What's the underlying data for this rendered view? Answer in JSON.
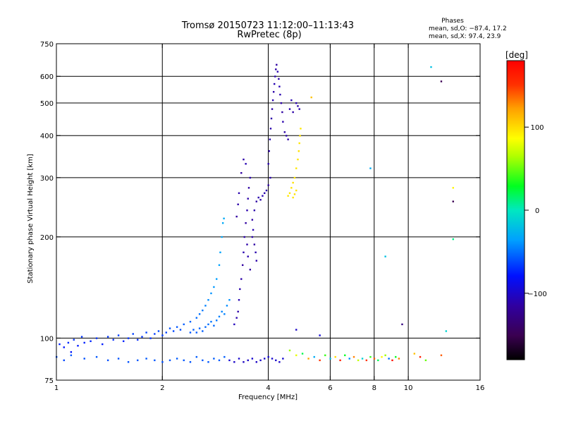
{
  "chart_data": {
    "type": "scatter",
    "title": "Tromsø 20150723 11:12:00–11:13:43",
    "subtitle": "RwPretec (8p)",
    "phases_block": {
      "heading": "Phases",
      "line_o": "mean, sd,O: −87.4, 17.2",
      "line_x": "mean, sd,X:  97.4, 23.9"
    },
    "xlabel": "Frequency [MHz]",
    "ylabel": "Stationary phase Virtual Height [km]",
    "x_scale": "log",
    "y_scale": "log",
    "xlim": [
      1,
      16
    ],
    "ylim": [
      75,
      750
    ],
    "x_ticks": [
      1,
      2,
      4,
      6,
      8,
      10,
      16
    ],
    "y_ticks": [
      75,
      100,
      200,
      300,
      400,
      500,
      600,
      750
    ],
    "x_gridlines": [
      2,
      4,
      6,
      8,
      10
    ],
    "y_gridlines": [
      100,
      200,
      300,
      400,
      500,
      600
    ],
    "colorbar": {
      "label": "[deg]",
      "range": [
        -180,
        180
      ],
      "ticks": [
        100,
        0,
        -100
      ],
      "colormap": "rainbow"
    },
    "series": [
      {
        "comment_free": true,
        "points": [
          [
            1.02,
            96,
            -75
          ],
          [
            1.05,
            94,
            -78
          ],
          [
            1.08,
            97,
            -72
          ],
          [
            1.1,
            91,
            -80
          ],
          [
            1.12,
            99,
            -70
          ],
          [
            1.15,
            95,
            -76
          ],
          [
            1.18,
            101,
            -68
          ],
          [
            1.2,
            97,
            -74
          ],
          [
            1.25,
            98,
            -72
          ],
          [
            1.3,
            100,
            -70
          ],
          [
            1.35,
            96,
            -76
          ],
          [
            1.4,
            101,
            -68
          ],
          [
            1.45,
            99,
            -71
          ],
          [
            1.5,
            102,
            -66
          ],
          [
            1.55,
            98,
            -73
          ],
          [
            1.6,
            100,
            -70
          ],
          [
            1.65,
            103,
            -65
          ],
          [
            1.7,
            99,
            -72
          ],
          [
            1.75,
            101,
            -69
          ],
          [
            1.8,
            104,
            -64
          ],
          [
            1.85,
            100,
            -70
          ],
          [
            1.9,
            103,
            -66
          ],
          [
            1.95,
            105,
            -62
          ],
          [
            2.0,
            102,
            -67
          ],
          [
            2.05,
            104,
            -64
          ],
          [
            2.1,
            107,
            -60
          ],
          [
            2.15,
            105,
            -63
          ],
          [
            2.2,
            108,
            -58
          ],
          [
            2.25,
            106,
            -62
          ],
          [
            2.3,
            110,
            -56
          ],
          [
            2.4,
            112,
            -54
          ],
          [
            2.5,
            115,
            -52
          ],
          [
            2.55,
            118,
            -50
          ],
          [
            2.6,
            121,
            -48
          ],
          [
            2.65,
            125,
            -45
          ],
          [
            2.7,
            130,
            -42
          ],
          [
            2.75,
            136,
            -40
          ],
          [
            2.8,
            142,
            -38
          ],
          [
            2.85,
            150,
            -36
          ],
          [
            2.9,
            165,
            -35
          ],
          [
            2.92,
            180,
            -34
          ],
          [
            2.95,
            200,
            -33
          ],
          [
            2.97,
            220,
            -32
          ],
          [
            2.99,
            227,
            -31
          ],
          [
            2.4,
            104,
            -58
          ],
          [
            2.45,
            106,
            -56
          ],
          [
            2.5,
            104,
            -57
          ],
          [
            2.55,
            107,
            -54
          ],
          [
            2.6,
            105,
            -56
          ],
          [
            2.65,
            108,
            -53
          ],
          [
            2.7,
            110,
            -51
          ],
          [
            2.75,
            112,
            -49
          ],
          [
            2.8,
            109,
            -52
          ],
          [
            2.85,
            113,
            -48
          ],
          [
            2.9,
            116,
            -46
          ],
          [
            2.95,
            120,
            -44
          ],
          [
            3.0,
            118,
            -45
          ],
          [
            3.05,
            125,
            -42
          ],
          [
            3.1,
            130,
            -40
          ],
          [
            1.0,
            88,
            -60
          ],
          [
            1.05,
            86,
            -62
          ],
          [
            1.1,
            89,
            -58
          ],
          [
            1.2,
            87,
            -60
          ],
          [
            1.3,
            88,
            -58
          ],
          [
            1.4,
            86,
            -60
          ],
          [
            1.5,
            87,
            -59
          ],
          [
            1.6,
            85,
            -60
          ],
          [
            1.7,
            86,
            -58
          ],
          [
            1.8,
            87,
            -57
          ],
          [
            1.9,
            86,
            -58
          ],
          [
            2.0,
            85,
            -60
          ],
          [
            2.1,
            86,
            -58
          ],
          [
            2.2,
            87,
            -57
          ],
          [
            2.3,
            86,
            -58
          ],
          [
            2.4,
            85,
            -59
          ],
          [
            2.5,
            88,
            -56
          ],
          [
            2.6,
            86,
            -58
          ],
          [
            2.7,
            85,
            -58
          ],
          [
            2.8,
            87,
            -56
          ],
          [
            2.9,
            86,
            -57
          ],
          [
            3.0,
            88,
            -56
          ],
          [
            3.1,
            86,
            -95
          ],
          [
            3.2,
            85,
            -100
          ],
          [
            3.3,
            87,
            -98
          ],
          [
            3.4,
            85,
            -102
          ],
          [
            3.5,
            86,
            -100
          ],
          [
            3.6,
            87,
            -97
          ],
          [
            3.7,
            85,
            -101
          ],
          [
            3.8,
            86,
            -99
          ],
          [
            3.9,
            87,
            -98
          ],
          [
            4.0,
            88,
            -95
          ],
          [
            4.1,
            87,
            -97
          ],
          [
            4.2,
            86,
            -98
          ],
          [
            4.3,
            85,
            -100
          ],
          [
            4.4,
            87,
            -96
          ],
          [
            3.2,
            110,
            -105
          ],
          [
            3.25,
            115,
            -110
          ],
          [
            3.28,
            120,
            -112
          ],
          [
            3.3,
            130,
            -108
          ],
          [
            3.32,
            140,
            -110
          ],
          [
            3.35,
            150,
            -112
          ],
          [
            3.38,
            165,
            -115
          ],
          [
            3.4,
            180,
            -110
          ],
          [
            3.42,
            200,
            -112
          ],
          [
            3.45,
            220,
            -115
          ],
          [
            3.48,
            240,
            -110
          ],
          [
            3.5,
            260,
            -112
          ],
          [
            3.52,
            280,
            -114
          ],
          [
            3.55,
            300,
            -110
          ],
          [
            3.45,
            330,
            -108
          ],
          [
            3.4,
            340,
            -112
          ],
          [
            3.35,
            310,
            -115
          ],
          [
            3.3,
            270,
            -110
          ],
          [
            3.28,
            250,
            -112
          ],
          [
            3.25,
            230,
            -115
          ],
          [
            3.6,
            200,
            -112
          ],
          [
            3.62,
            210,
            -108
          ],
          [
            3.65,
            190,
            -114
          ],
          [
            3.68,
            180,
            -110
          ],
          [
            3.7,
            170,
            -112
          ],
          [
            3.55,
            160,
            -115
          ],
          [
            3.5,
            175,
            -110
          ],
          [
            3.48,
            190,
            -112
          ],
          [
            3.6,
            225,
            -113
          ],
          [
            3.65,
            240,
            -111
          ],
          [
            3.7,
            255,
            -114
          ],
          [
            3.75,
            262,
            -110
          ],
          [
            3.8,
            258,
            -112
          ],
          [
            3.85,
            265,
            -108
          ],
          [
            3.9,
            270,
            -110
          ],
          [
            3.95,
            275,
            -112
          ],
          [
            4.0,
            285,
            -114
          ],
          [
            4.05,
            300,
            -110
          ],
          [
            4.0,
            330,
            -110
          ],
          [
            4.02,
            360,
            -112
          ],
          [
            4.04,
            390,
            -108
          ],
          [
            4.06,
            420,
            -110
          ],
          [
            4.08,
            450,
            -112
          ],
          [
            4.1,
            480,
            -114
          ],
          [
            4.12,
            510,
            -110
          ],
          [
            4.14,
            540,
            -112
          ],
          [
            4.16,
            570,
            -108
          ],
          [
            4.18,
            600,
            -110
          ],
          [
            4.2,
            630,
            -112
          ],
          [
            4.22,
            650,
            -114
          ],
          [
            4.25,
            620,
            -110
          ],
          [
            4.28,
            590,
            -112
          ],
          [
            4.3,
            560,
            -108
          ],
          [
            4.32,
            530,
            -110
          ],
          [
            4.35,
            500,
            -112
          ],
          [
            4.38,
            470,
            -114
          ],
          [
            4.4,
            440,
            -110
          ],
          [
            4.45,
            410,
            -112
          ],
          [
            4.5,
            400,
            -110
          ],
          [
            4.55,
            390,
            -112
          ],
          [
            4.6,
            480,
            -110
          ],
          [
            4.65,
            510,
            -108
          ],
          [
            4.7,
            470,
            -112
          ],
          [
            4.8,
            500,
            -110
          ],
          [
            4.85,
            490,
            -112
          ],
          [
            4.9,
            480,
            -110
          ],
          [
            4.55,
            265,
            95
          ],
          [
            4.6,
            270,
            96
          ],
          [
            4.65,
            280,
            97
          ],
          [
            4.7,
            290,
            98
          ],
          [
            4.75,
            300,
            96
          ],
          [
            4.8,
            320,
            95
          ],
          [
            4.85,
            340,
            97
          ],
          [
            4.88,
            360,
            98
          ],
          [
            4.9,
            380,
            96
          ],
          [
            4.92,
            400,
            97
          ],
          [
            4.94,
            420,
            95
          ],
          [
            4.7,
            262,
            96
          ],
          [
            4.75,
            268,
            98
          ],
          [
            4.8,
            275,
            97
          ],
          [
            5.3,
            520,
            110
          ],
          [
            4.6,
            92,
            60
          ],
          [
            4.8,
            89,
            80
          ],
          [
            5.0,
            90,
            20
          ],
          [
            5.2,
            87,
            120
          ],
          [
            5.4,
            88,
            -30
          ],
          [
            5.6,
            86,
            150
          ],
          [
            5.8,
            89,
            40
          ],
          [
            6.0,
            87,
            -20
          ],
          [
            6.2,
            88,
            100
          ],
          [
            6.4,
            86,
            160
          ],
          [
            6.6,
            89,
            30
          ],
          [
            6.8,
            87,
            -40
          ],
          [
            7.0,
            88,
            130
          ],
          [
            7.2,
            86,
            70
          ],
          [
            7.4,
            87,
            -10
          ],
          [
            7.6,
            86,
            150
          ],
          [
            7.8,
            88,
            40
          ],
          [
            8.0,
            87,
            140
          ],
          [
            8.2,
            86,
            20
          ],
          [
            8.4,
            88,
            90
          ],
          [
            8.6,
            89,
            60
          ],
          [
            8.8,
            87,
            -50
          ],
          [
            9.0,
            86,
            170
          ],
          [
            9.2,
            88,
            30
          ],
          [
            9.4,
            87,
            130
          ],
          [
            10.4,
            90,
            110
          ],
          [
            10.8,
            88,
            160
          ],
          [
            11.2,
            86,
            50
          ],
          [
            12.4,
            89,
            140
          ],
          [
            4.8,
            106,
            -100
          ],
          [
            5.6,
            102,
            -95
          ],
          [
            7.8,
            320,
            -30
          ],
          [
            8.6,
            175,
            -20
          ],
          [
            9.6,
            110,
            -130
          ],
          [
            11.6,
            640,
            -20
          ],
          [
            12.4,
            580,
            -150
          ],
          [
            12.8,
            105,
            -10
          ],
          [
            13.4,
            280,
            90
          ],
          [
            13.4,
            255,
            -150
          ],
          [
            13.4,
            197,
            10
          ]
        ]
      }
    ]
  }
}
